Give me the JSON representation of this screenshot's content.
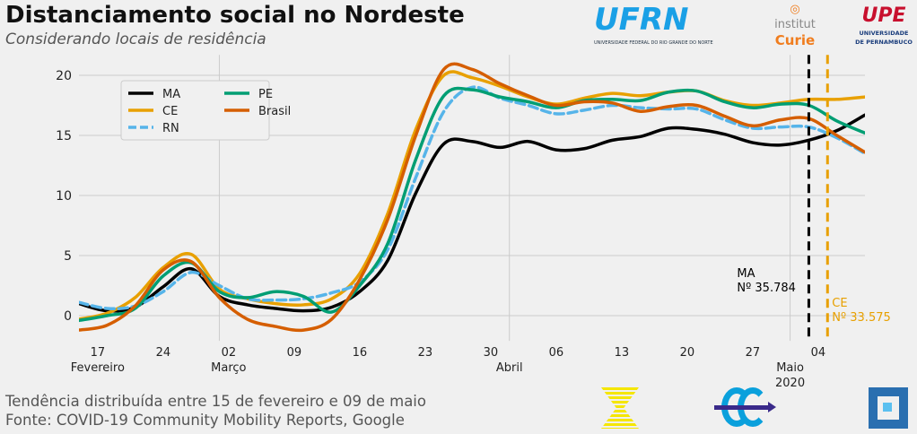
{
  "header": {
    "title": "Distanciamento social no Nordeste",
    "subtitle": "Considerando locais de residência"
  },
  "footer": {
    "line1": "Tendência distribuída entre 15 de fevereiro e 09 de maio",
    "line2": "Fonte: COVID-19 Community Mobility Reports, Google"
  },
  "logos": {
    "ufrn": "UFRN",
    "ufrn_sub": "UNIVERSIDADE FEDERAL DO RIO GRANDE DO NORTE",
    "curie1": "institut",
    "curie2": "Curie",
    "upe": "UPE",
    "upe_sub1": "UNIVERSIDADE",
    "upe_sub2": "DE PERNAMBUCO"
  },
  "chart_data": {
    "type": "line",
    "ylim": [
      -1.5,
      22
    ],
    "yticks": [
      0,
      5,
      10,
      15,
      20
    ],
    "xlim": [
      "2020-02-15",
      "2020-05-09"
    ],
    "xticks": [
      {
        "date": "2020-02-17",
        "label": "17",
        "sub": "Fevereiro"
      },
      {
        "date": "2020-02-24",
        "label": "24"
      },
      {
        "date": "2020-03-02",
        "label": "02",
        "sub": "Março"
      },
      {
        "date": "2020-03-09",
        "label": "09"
      },
      {
        "date": "2020-03-16",
        "label": "16"
      },
      {
        "date": "2020-03-23",
        "label": "23"
      },
      {
        "date": "2020-03-30",
        "label": "30"
      },
      {
        "date": "2020-04-06",
        "label": "06"
      },
      {
        "date": "2020-04-13",
        "label": "13"
      },
      {
        "date": "2020-04-20",
        "label": "20"
      },
      {
        "date": "2020-04-27",
        "label": "27"
      },
      {
        "date": "2020-05-04",
        "label": "04"
      }
    ],
    "month_labels": [
      {
        "date": "2020-04-01",
        "label": "Abril"
      },
      {
        "date": "2020-05-01",
        "label": "Maio",
        "sub": "2020"
      }
    ],
    "month_gridlines": [
      "2020-03-01",
      "2020-04-01",
      "2020-05-01"
    ],
    "grid": true,
    "legend_placement": "top-left",
    "x": [
      "2020-02-15",
      "2020-02-18",
      "2020-02-21",
      "2020-02-24",
      "2020-02-27",
      "2020-03-01",
      "2020-03-04",
      "2020-03-07",
      "2020-03-10",
      "2020-03-13",
      "2020-03-16",
      "2020-03-19",
      "2020-03-22",
      "2020-03-25",
      "2020-03-28",
      "2020-03-31",
      "2020-04-03",
      "2020-04-06",
      "2020-04-09",
      "2020-04-12",
      "2020-04-15",
      "2020-04-18",
      "2020-04-21",
      "2020-04-24",
      "2020-04-27",
      "2020-04-30",
      "2020-05-03",
      "2020-05-06",
      "2020-05-09"
    ],
    "series": [
      {
        "name": "MA",
        "color": "#000000",
        "dashed": false,
        "values": [
          1.0,
          0.4,
          0.7,
          2.4,
          3.9,
          1.6,
          0.9,
          0.6,
          0.4,
          0.7,
          2.0,
          4.6,
          10.2,
          14.3,
          14.5,
          14.0,
          14.5,
          13.8,
          13.9,
          14.6,
          14.9,
          15.6,
          15.5,
          15.1,
          14.4,
          14.2,
          14.6,
          15.4,
          16.7
        ]
      },
      {
        "name": "CE",
        "color": "#e8a000",
        "dashed": false,
        "values": [
          -0.3,
          0.2,
          1.5,
          4.0,
          5.1,
          2.2,
          1.4,
          1.0,
          0.9,
          1.4,
          3.5,
          8.5,
          15.5,
          20.0,
          19.8,
          19.1,
          18.2,
          17.6,
          18.1,
          18.5,
          18.3,
          18.6,
          18.7,
          17.9,
          17.5,
          17.7,
          18.0,
          18.0,
          18.2
        ]
      },
      {
        "name": "RN",
        "color": "#56b4e9",
        "dashed": true,
        "values": [
          1.1,
          0.6,
          0.8,
          2.0,
          3.6,
          2.5,
          1.4,
          1.3,
          1.4,
          1.9,
          2.8,
          5.5,
          11.5,
          17.0,
          19.0,
          18.1,
          17.5,
          16.8,
          17.1,
          17.5,
          17.3,
          17.2,
          17.2,
          16.3,
          15.6,
          15.7,
          15.7,
          14.8,
          13.5
        ]
      },
      {
        "name": "PE",
        "color": "#009e73",
        "dashed": false,
        "values": [
          -0.4,
          0.0,
          0.6,
          3.3,
          4.4,
          2.0,
          1.5,
          2.0,
          1.6,
          0.3,
          2.5,
          6.0,
          13.0,
          18.3,
          18.8,
          18.2,
          17.8,
          17.3,
          17.9,
          18.0,
          17.9,
          18.6,
          18.7,
          17.8,
          17.3,
          17.6,
          17.5,
          16.2,
          15.2
        ]
      },
      {
        "name": "Brasil",
        "color": "#d55e00",
        "dashed": false,
        "values": [
          -1.2,
          -0.8,
          0.8,
          3.8,
          4.5,
          1.5,
          -0.3,
          -0.9,
          -1.2,
          -0.3,
          3.0,
          8.0,
          15.0,
          20.5,
          20.5,
          19.3,
          18.3,
          17.5,
          17.8,
          17.7,
          17.0,
          17.4,
          17.5,
          16.6,
          15.8,
          16.3,
          16.4,
          15.0,
          13.6
        ]
      }
    ],
    "annotations": [
      {
        "label": "MA",
        "text": "Nº 35.784",
        "date": "2020-05-03",
        "color": "#000000"
      },
      {
        "label": "CE",
        "text": "Nº 33.575",
        "date": "2020-05-05",
        "color": "#e8a000"
      }
    ]
  }
}
